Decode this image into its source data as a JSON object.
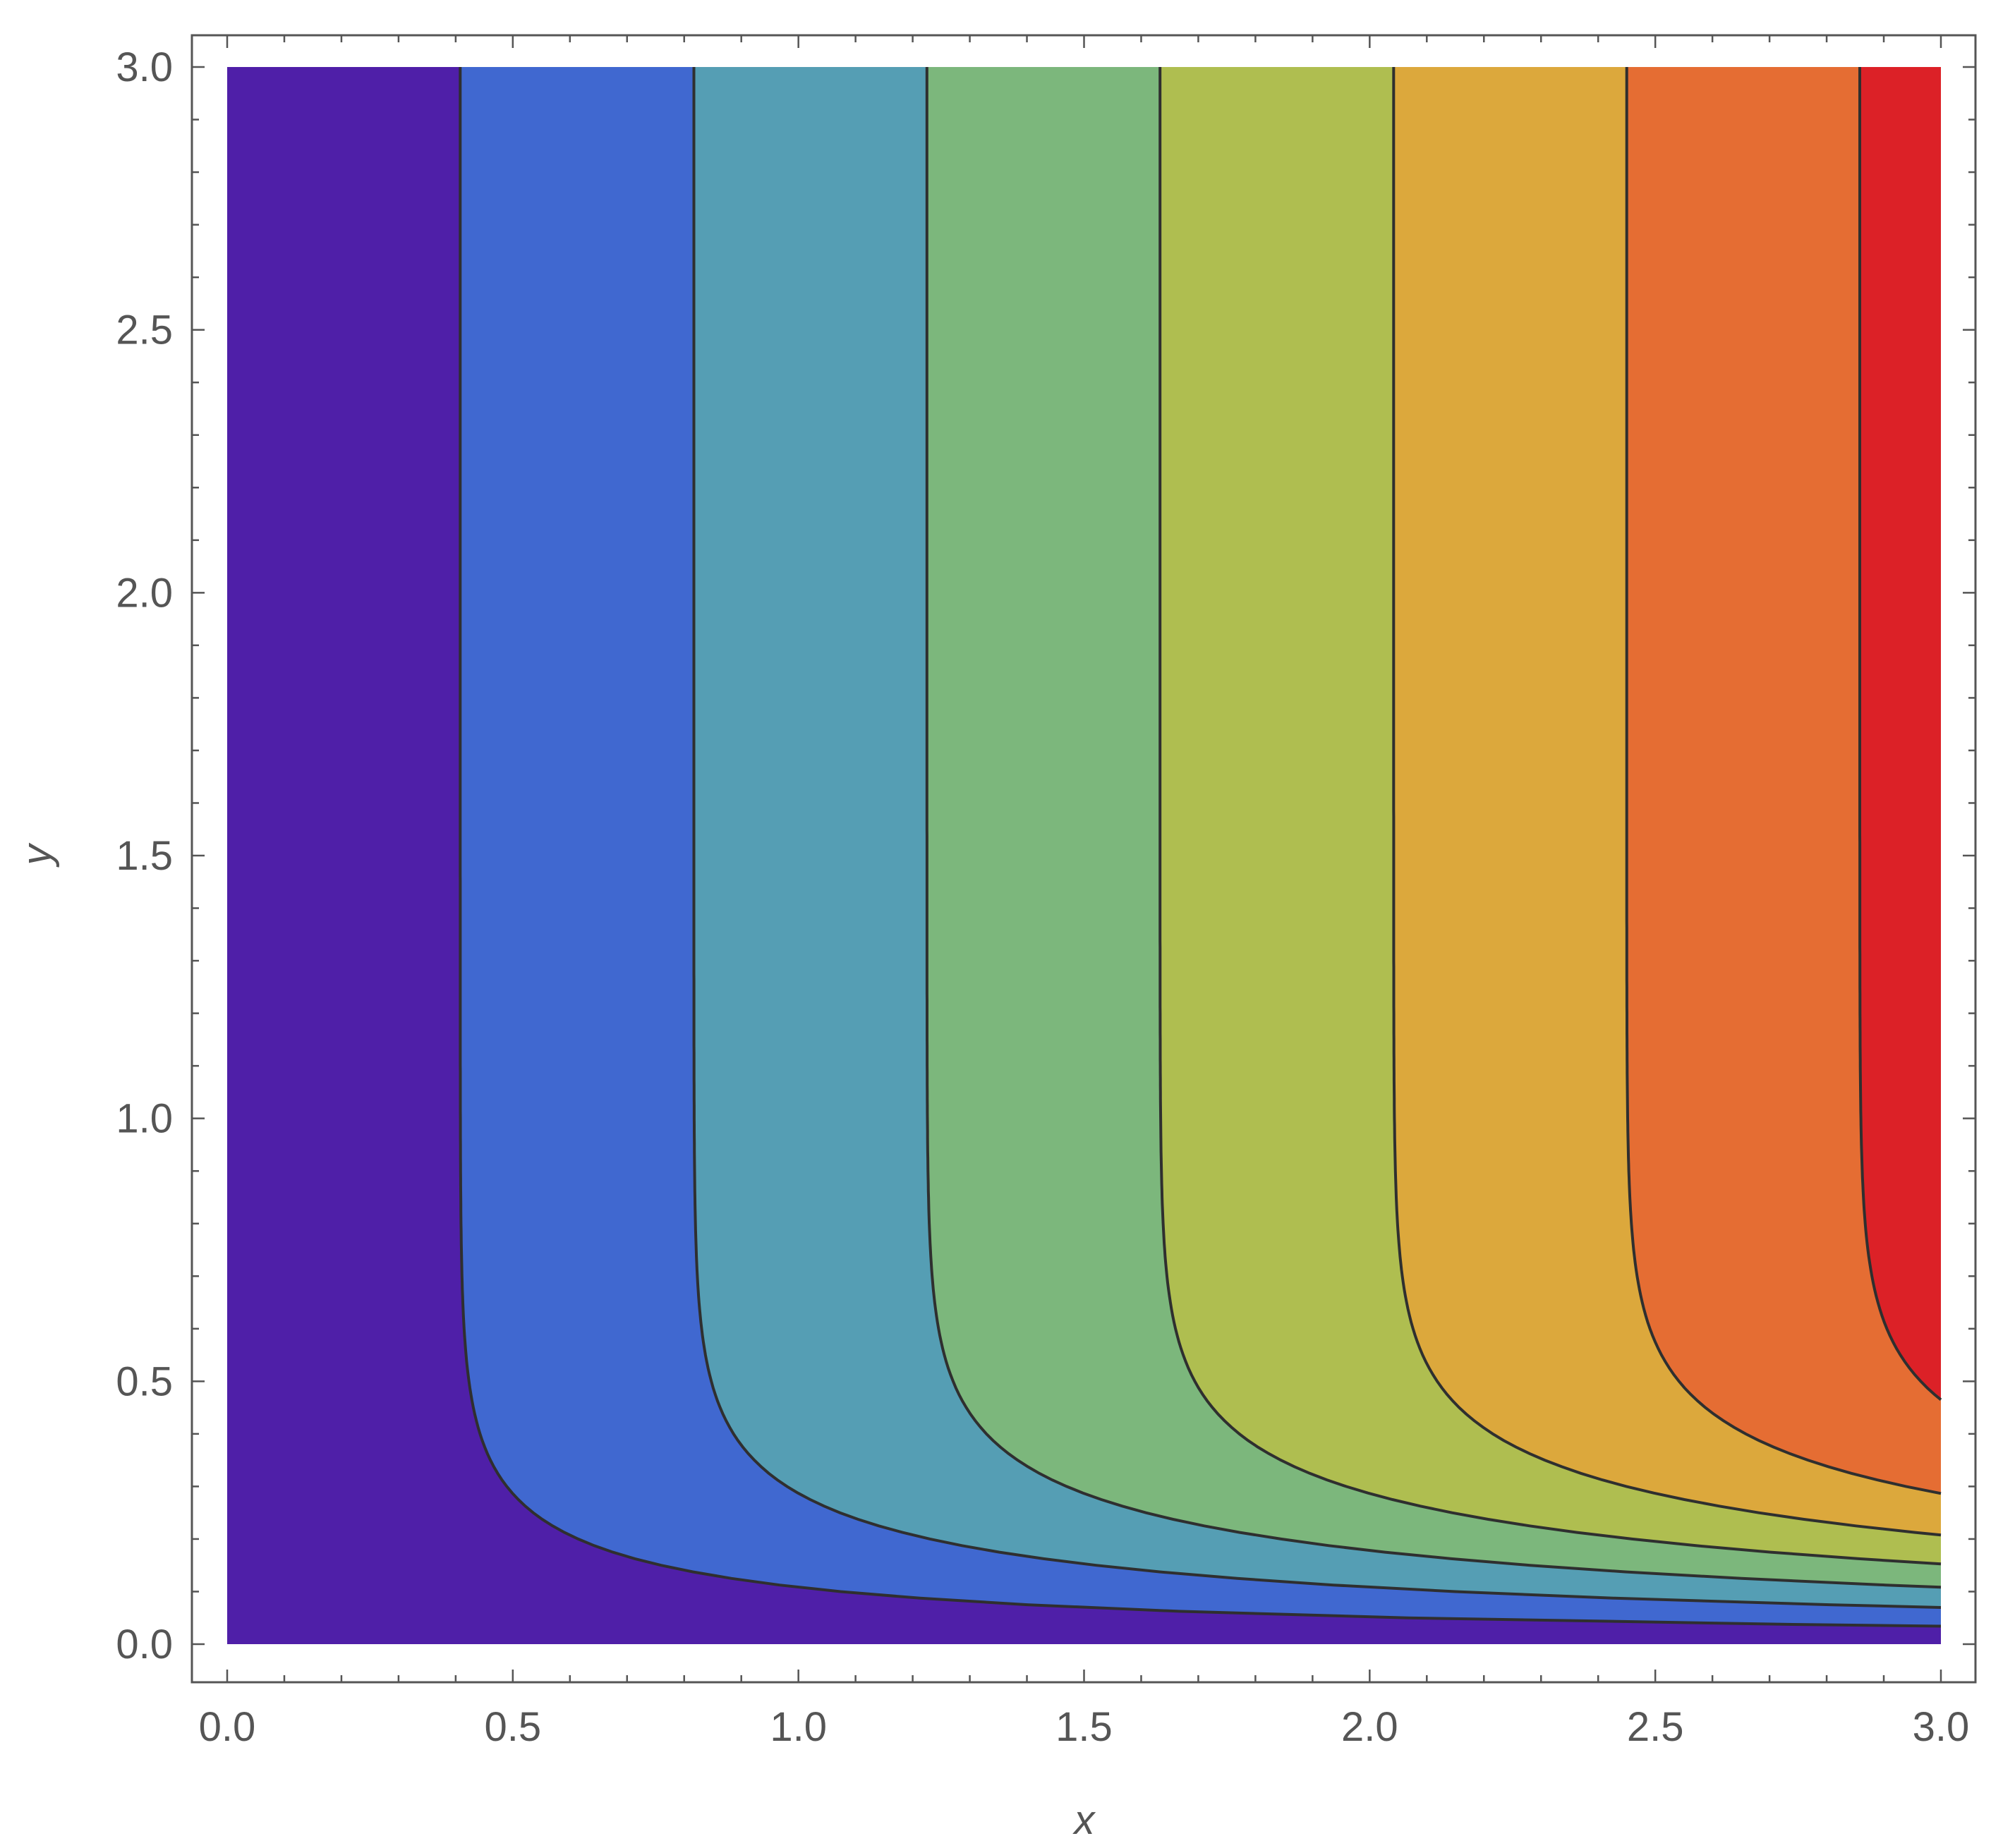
{
  "chart_data": {
    "type": "contour",
    "xlabel": "x",
    "ylabel": "y",
    "xlim": [
      0,
      3
    ],
    "ylim": [
      0,
      3
    ],
    "x_ticks": [
      "0.0",
      "0.5",
      "1.0",
      "1.5",
      "2.0",
      "2.5",
      "3.0"
    ],
    "y_ticks": [
      "0.0",
      "0.5",
      "1.0",
      "1.5",
      "2.0",
      "2.5",
      "3.0"
    ],
    "x_tick_values": [
      0,
      0.5,
      1.0,
      1.5,
      2.0,
      2.5,
      3.0
    ],
    "y_tick_values": [
      0,
      0.5,
      1.0,
      1.5,
      2.0,
      2.5,
      3.0
    ],
    "contour_levels": [
      0.408,
      0.817,
      1.225,
      1.633,
      2.042,
      2.45,
      2.858
    ],
    "band_colors": [
      "#4f1fa8",
      "#4068d0",
      "#559eb4",
      "#7cb77c",
      "#afbe50",
      "#dca83c",
      "#e56d33",
      "#dc2127"
    ],
    "contour_line_color": "#2f2f2f",
    "legend": "none",
    "grid": false
  }
}
